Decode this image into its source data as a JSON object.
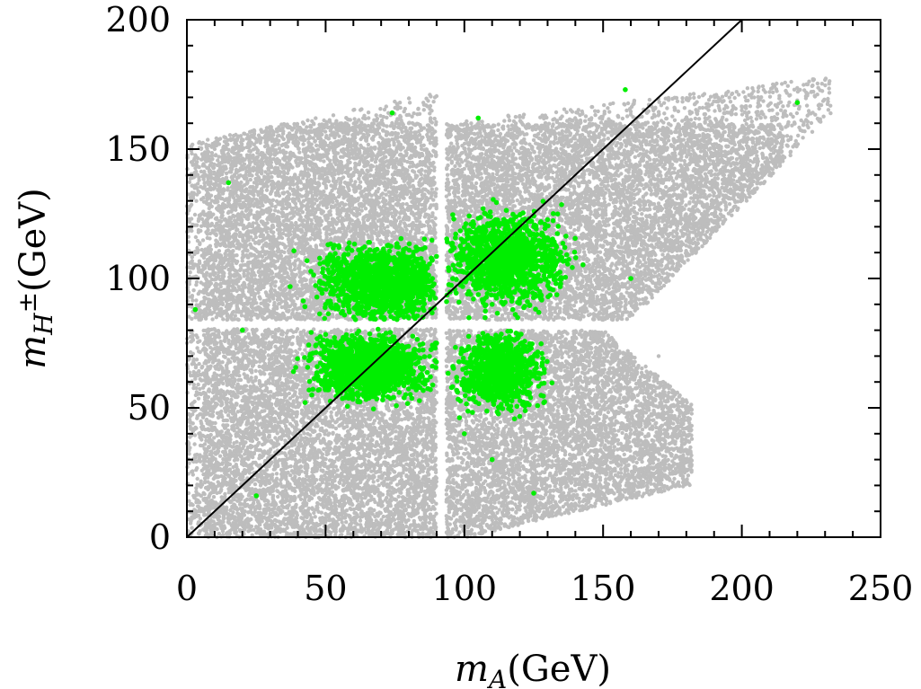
{
  "chart_data": {
    "type": "scatter",
    "title": "",
    "xlim": [
      0,
      250
    ],
    "ylim": [
      0,
      200
    ],
    "xticks": [
      0,
      50,
      100,
      150,
      200,
      250
    ],
    "yticks": [
      0,
      50,
      100,
      150,
      200
    ],
    "xticklabels": [
      "0",
      "50",
      "100",
      "150",
      "200",
      "250"
    ],
    "yticklabels": [
      "0",
      "50",
      "100",
      "150",
      "200"
    ],
    "xlabel": {
      "var": "m",
      "sub": "A",
      "unit": "(GeV)"
    },
    "ylabel": {
      "var": "m",
      "sub": "H",
      "sup": "±",
      "unit": "(GeV)"
    },
    "grid": false,
    "legend": "none",
    "reference_line": {
      "x": [
        0,
        200
      ],
      "y": [
        0,
        200
      ],
      "color": "#000000"
    },
    "series": [
      {
        "color": "#bdbdbd",
        "description_regions": [
          {
            "x": [
              0,
              90
            ],
            "y": [
              0,
              80
            ]
          },
          {
            "x": [
              0,
              90
            ],
            "y": [
              85,
              170
            ]
          },
          {
            "x": [
              94,
              230
            ],
            "y": [
              85,
              180
            ]
          },
          {
            "x": [
              94,
              180
            ],
            "y": [
              0,
              80
            ]
          }
        ],
        "points": [
          [
            5,
            10
          ],
          [
            20,
            30
          ],
          [
            45,
            15
          ],
          [
            70,
            60
          ],
          [
            85,
            5
          ],
          [
            30,
            100
          ],
          [
            60,
            130
          ],
          [
            80,
            160
          ],
          [
            10,
            150
          ],
          [
            110,
            100
          ],
          [
            140,
            130
          ],
          [
            170,
            150
          ],
          [
            200,
            165
          ],
          [
            225,
            172
          ],
          [
            120,
            60
          ],
          [
            150,
            40
          ],
          [
            170,
            70
          ],
          [
            100,
            20
          ],
          [
            130,
            10
          ],
          [
            160,
            30
          ]
        ]
      },
      {
        "color": "#00ee00",
        "points": [
          [
            60,
            95
          ],
          [
            80,
            100
          ],
          [
            70,
            110
          ],
          [
            50,
            90
          ],
          [
            85,
            85
          ],
          [
            105,
            100
          ],
          [
            115,
            110
          ],
          [
            125,
            120
          ],
          [
            110,
            90
          ],
          [
            130,
            105
          ],
          [
            60,
            70
          ],
          [
            75,
            60
          ],
          [
            85,
            65
          ],
          [
            45,
            55
          ],
          [
            90,
            75
          ],
          [
            105,
            60
          ],
          [
            115,
            55
          ],
          [
            125,
            70
          ],
          [
            100,
            40
          ],
          [
            110,
            30
          ],
          [
            20,
            80
          ],
          [
            15,
            137
          ],
          [
            74,
            164
          ],
          [
            105,
            162
          ],
          [
            158,
            173
          ],
          [
            220,
            168
          ],
          [
            3,
            88
          ],
          [
            25,
            16
          ],
          [
            125,
            17
          ],
          [
            160,
            100
          ]
        ]
      }
    ]
  }
}
